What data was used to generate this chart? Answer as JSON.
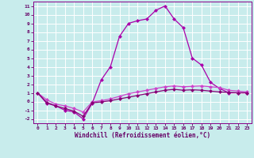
{
  "bg_color": "#c8ecec",
  "grid_color": "#b0d0d0",
  "line_color1": "#aa00aa",
  "line_color2": "#cc44cc",
  "line_color3": "#880077",
  "xlim": [
    -0.5,
    23.5
  ],
  "ylim": [
    -2.5,
    11.5
  ],
  "yticks": [
    -2,
    -1,
    0,
    1,
    2,
    3,
    4,
    5,
    6,
    7,
    8,
    9,
    10,
    11
  ],
  "xticks": [
    0,
    1,
    2,
    3,
    4,
    5,
    6,
    7,
    8,
    9,
    10,
    11,
    12,
    13,
    14,
    15,
    16,
    17,
    18,
    19,
    20,
    21,
    22,
    23
  ],
  "xlabel": "Windchill (Refroidissement éolien,°C)",
  "series1_x": [
    0,
    1,
    2,
    3,
    4,
    5,
    6,
    7,
    8,
    9,
    10,
    11,
    12,
    13,
    14,
    15,
    16,
    17,
    18,
    19,
    20,
    21,
    22,
    23
  ],
  "series1_y": [
    1.0,
    -0.2,
    -0.5,
    -1.0,
    -1.2,
    -2.0,
    -0.2,
    2.5,
    4.0,
    7.5,
    9.0,
    9.3,
    9.5,
    10.5,
    11.0,
    9.5,
    8.5,
    5.0,
    4.2,
    2.2,
    1.5,
    1.0,
    1.0,
    1.0
  ],
  "series2_x": [
    0,
    1,
    2,
    3,
    4,
    5,
    6,
    7,
    8,
    9,
    10,
    11,
    12,
    13,
    14,
    15,
    16,
    17,
    18,
    19,
    20,
    21,
    22,
    23
  ],
  "series2_y": [
    1.0,
    0.2,
    -0.3,
    -0.5,
    -0.8,
    -1.2,
    -0.05,
    0.1,
    0.3,
    0.6,
    0.9,
    1.1,
    1.3,
    1.5,
    1.7,
    1.8,
    1.7,
    1.75,
    1.8,
    1.7,
    1.6,
    1.3,
    1.2,
    1.1
  ],
  "series3_x": [
    0,
    1,
    2,
    3,
    4,
    5,
    6,
    7,
    8,
    9,
    10,
    11,
    12,
    13,
    14,
    15,
    16,
    17,
    18,
    19,
    20,
    21,
    22,
    23
  ],
  "series3_y": [
    1.0,
    -0.1,
    -0.5,
    -0.8,
    -1.1,
    -1.7,
    -0.15,
    -0.05,
    0.1,
    0.3,
    0.5,
    0.7,
    0.9,
    1.1,
    1.3,
    1.4,
    1.3,
    1.35,
    1.3,
    1.2,
    1.1,
    1.05,
    1.0,
    1.0
  ]
}
